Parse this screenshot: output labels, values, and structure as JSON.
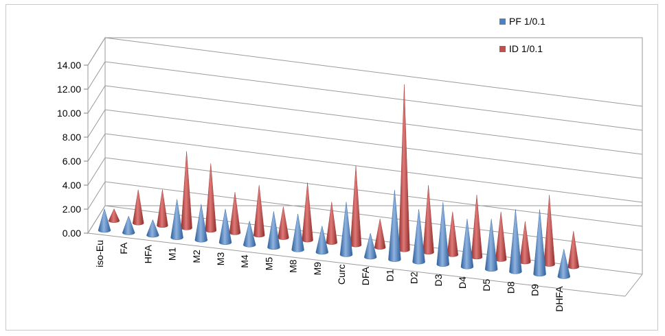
{
  "chart_data": {
    "type": "bar",
    "style": "3d-cone",
    "categories": [
      "iso-Eu",
      "FA",
      "HFA",
      "M1",
      "M2",
      "M3",
      "M4",
      "M5",
      "M8",
      "M9",
      "Curc",
      "DFA",
      "D1",
      "D2",
      "D3",
      "D4",
      "D5",
      "D8",
      "D9",
      "DHFA"
    ],
    "series": [
      {
        "name": "PF 1/0.1",
        "color": "#4f81bd",
        "values": [
          1.8,
          1.4,
          1.3,
          3.2,
          3.0,
          2.8,
          2.0,
          3.0,
          3.0,
          2.2,
          4.4,
          2.0,
          5.8,
          4.4,
          5.2,
          4.0,
          4.2,
          5.2,
          5.4,
          2.3
        ]
      },
      {
        "name": "ID 1/0.1",
        "color": "#c0504d",
        "values": [
          1.0,
          2.8,
          3.0,
          6.4,
          5.6,
          3.4,
          4.2,
          2.6,
          4.8,
          3.4,
          6.6,
          2.4,
          13.8,
          5.6,
          3.6,
          5.2,
          4.0,
          3.4,
          5.8,
          3.0
        ]
      }
    ],
    "title": "",
    "xlabel": "",
    "ylabel": "",
    "ylim": [
      0,
      14
    ],
    "yticks": [
      "0.00",
      "2.00",
      "4.00",
      "6.00",
      "8.00",
      "10.00",
      "12.00",
      "14.00"
    ],
    "grid": true,
    "legend": "top-right"
  }
}
